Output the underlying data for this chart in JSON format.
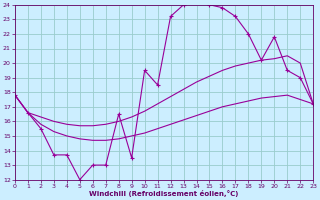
{
  "xlabel": "Windchill (Refroidissement éolien,°C)",
  "bg_color": "#cceeff",
  "grid_color": "#99cccc",
  "line_color": "#990099",
  "xlim": [
    0,
    23
  ],
  "ylim": [
    12,
    24
  ],
  "xticks": [
    0,
    1,
    2,
    3,
    4,
    5,
    6,
    7,
    8,
    9,
    10,
    11,
    12,
    13,
    14,
    15,
    16,
    17,
    18,
    19,
    20,
    21,
    22,
    23
  ],
  "yticks": [
    12,
    13,
    14,
    15,
    16,
    17,
    18,
    19,
    20,
    21,
    22,
    23,
    24
  ],
  "curve1_x": [
    0,
    1,
    2,
    3,
    4,
    5,
    6,
    7,
    8,
    9,
    10,
    11,
    12,
    13,
    14,
    15,
    16,
    17,
    18,
    19,
    20,
    21,
    22,
    23
  ],
  "curve1_y": [
    17.8,
    16.6,
    15.5,
    13.7,
    13.7,
    12.0,
    13.0,
    13.0,
    16.5,
    13.5,
    19.5,
    18.5,
    23.2,
    24.0,
    24.2,
    24.0,
    23.8,
    23.2,
    22.0,
    20.2,
    21.8,
    19.5,
    19.0,
    17.2
  ],
  "curve2_x": [
    0,
    1,
    2,
    3,
    4,
    5,
    6,
    7,
    8,
    9,
    10,
    11,
    12,
    13,
    14,
    15,
    16,
    17,
    18,
    19,
    20,
    21,
    22,
    23
  ],
  "curve2_y": [
    17.8,
    16.6,
    16.3,
    16.0,
    15.8,
    15.7,
    15.7,
    15.8,
    16.0,
    16.3,
    16.7,
    17.2,
    17.7,
    18.2,
    18.7,
    19.1,
    19.5,
    19.8,
    20.0,
    20.2,
    20.3,
    20.5,
    20.0,
    17.2
  ],
  "curve3_x": [
    0,
    1,
    2,
    3,
    4,
    5,
    6,
    7,
    8,
    9,
    10,
    11,
    12,
    13,
    14,
    15,
    16,
    17,
    18,
    19,
    20,
    21,
    22,
    23
  ],
  "curve3_y": [
    17.8,
    16.6,
    15.8,
    15.3,
    15.0,
    14.8,
    14.7,
    14.7,
    14.8,
    15.0,
    15.2,
    15.5,
    15.8,
    16.1,
    16.4,
    16.7,
    17.0,
    17.2,
    17.4,
    17.6,
    17.7,
    17.8,
    17.5,
    17.2
  ]
}
